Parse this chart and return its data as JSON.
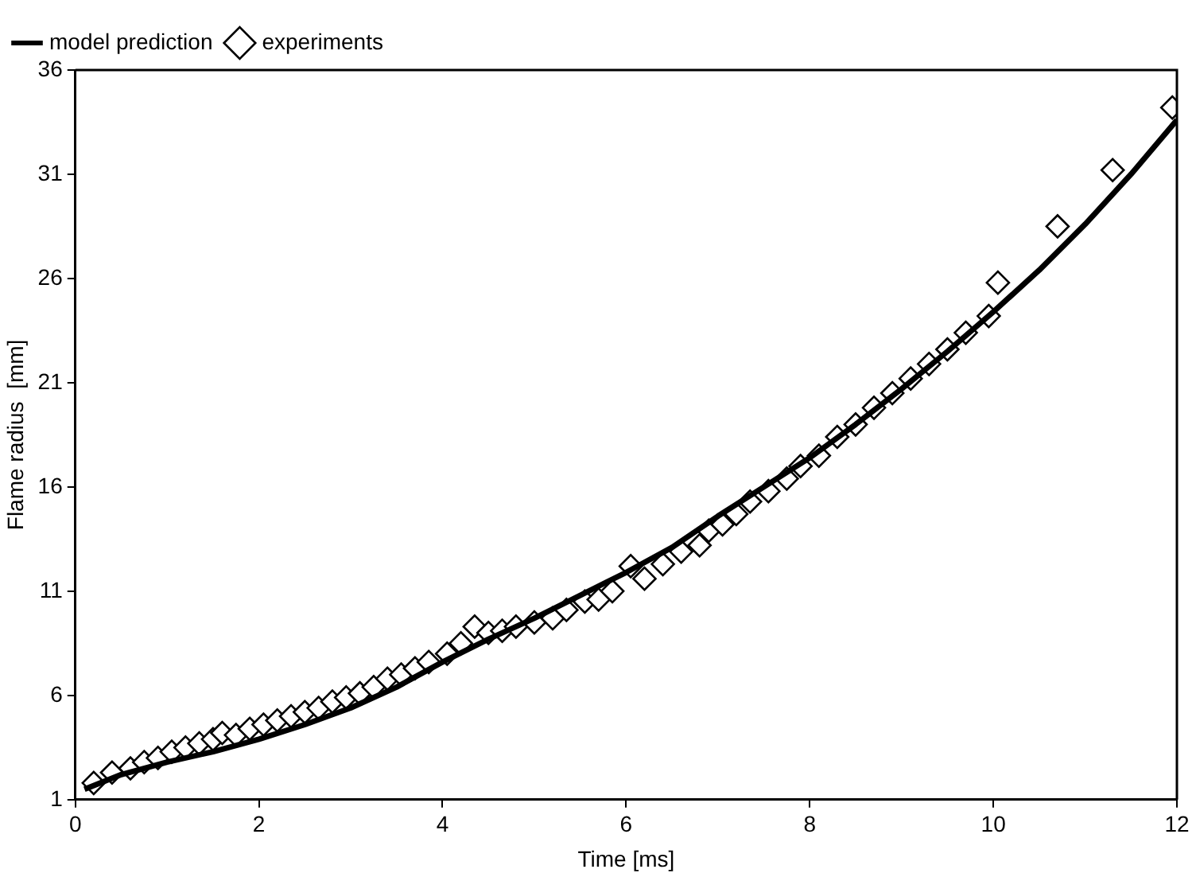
{
  "chart_data": {
    "type": "line",
    "xlabel": "Time [ms]",
    "ylabel": "Flame radius  [mm]",
    "xlim": [
      0,
      12
    ],
    "xticks": [
      0,
      2,
      4,
      6,
      8,
      10,
      12
    ],
    "ylim": [
      1,
      36
    ],
    "yticks": [
      1,
      6,
      11,
      16,
      21,
      26,
      31,
      36
    ],
    "grid": false,
    "legend": "top left",
    "series": [
      {
        "name": "model prediction",
        "type": "line",
        "color": "#000000",
        "marker": "none",
        "line_style": "solid",
        "x": [
          0.1,
          0.5,
          1,
          1.5,
          2,
          2.5,
          3,
          3.5,
          4,
          4.5,
          5,
          5.5,
          6,
          6.5,
          7,
          7.5,
          8,
          8.5,
          9,
          9.5,
          10,
          10.5,
          11,
          11.5,
          12
        ],
        "values": [
          1.5,
          2.2,
          2.8,
          3.3,
          3.9,
          4.6,
          5.4,
          6.4,
          7.6,
          8.7,
          9.7,
          10.8,
          11.9,
          13.1,
          14.6,
          16.0,
          17.4,
          19.0,
          20.7,
          22.5,
          24.4,
          26.4,
          28.6,
          31.0,
          33.6
        ]
      },
      {
        "name": "experiments",
        "type": "scatter",
        "color": "#000000",
        "marker": "diamond",
        "x": [
          0.2,
          0.4,
          0.6,
          0.75,
          0.9,
          1.05,
          1.2,
          1.35,
          1.5,
          1.6,
          1.75,
          1.9,
          2.05,
          2.2,
          2.35,
          2.5,
          2.65,
          2.8,
          2.95,
          3.1,
          3.25,
          3.4,
          3.55,
          3.7,
          3.85,
          4.05,
          4.2,
          4.35,
          4.5,
          4.65,
          4.8,
          5.0,
          5.2,
          5.35,
          5.55,
          5.7,
          5.85,
          6.05,
          6.2,
          6.4,
          6.6,
          6.8,
          6.9,
          7.05,
          7.2,
          7.35,
          7.55,
          7.75,
          7.9,
          8.1,
          8.3,
          8.5,
          8.7,
          8.9,
          9.1,
          9.3,
          9.5,
          9.7,
          9.95,
          10.05,
          10.7,
          11.3,
          11.95
        ],
        "values": [
          1.8,
          2.3,
          2.5,
          2.8,
          3.0,
          3.3,
          3.5,
          3.7,
          3.9,
          4.2,
          4.1,
          4.4,
          4.6,
          4.8,
          5.0,
          5.2,
          5.4,
          5.7,
          5.9,
          6.1,
          6.4,
          6.8,
          7.0,
          7.3,
          7.6,
          8.0,
          8.5,
          9.3,
          9.0,
          9.1,
          9.3,
          9.5,
          9.7,
          10.1,
          10.5,
          10.6,
          11.0,
          12.2,
          11.6,
          12.3,
          12.9,
          13.2,
          13.9,
          14.2,
          14.7,
          15.3,
          15.8,
          16.4,
          17.0,
          17.5,
          18.4,
          19.0,
          19.8,
          20.5,
          21.2,
          21.9,
          22.6,
          23.4,
          24.2,
          25.8,
          28.5,
          31.2,
          34.2
        ]
      }
    ]
  }
}
